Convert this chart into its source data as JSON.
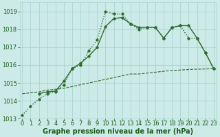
{
  "title": "Graphe pression niveau de la mer (hPa)",
  "x_labels": [
    0,
    1,
    2,
    3,
    4,
    5,
    6,
    7,
    8,
    9,
    10,
    11,
    12,
    13,
    14,
    15,
    16,
    17,
    18,
    19,
    20,
    21,
    22,
    23
  ],
  "series1_dotted": {
    "x": [
      0,
      1,
      2,
      3,
      4,
      5,
      6,
      7,
      8,
      9,
      10,
      11,
      12,
      13,
      14,
      15,
      16,
      17,
      18,
      19,
      20,
      21,
      22,
      23
    ],
    "y": [
      1013.2,
      1013.7,
      1014.1,
      1014.4,
      1014.5,
      1014.9,
      1015.8,
      1016.0,
      1016.8,
      1017.4,
      1019.0,
      1018.85,
      1018.85,
      1018.3,
      1018.0,
      1018.1,
      1018.1,
      1017.5,
      1018.1,
      1018.2,
      1017.5,
      1017.5,
      1016.7,
      1015.8
    ],
    "color": "#2d6a2d",
    "linestyle": "dotted",
    "linewidth": 1.0,
    "marker": "o",
    "markersize": 2.5
  },
  "series2_solid": {
    "x": [
      2,
      3,
      4,
      5,
      6,
      7,
      8,
      9,
      10,
      11,
      12,
      13,
      14,
      15,
      16,
      17,
      18,
      19,
      20,
      21,
      22,
      23
    ],
    "y": [
      1014.4,
      1014.5,
      1014.55,
      1015.1,
      1015.8,
      1016.1,
      1016.5,
      1017.0,
      1018.15,
      1018.6,
      1018.65,
      1018.3,
      1018.1,
      1018.1,
      1018.1,
      1017.5,
      1018.1,
      1018.2,
      1018.2,
      1017.5,
      1016.7,
      1015.8
    ],
    "color": "#2d6a2d",
    "linestyle": "solid",
    "linewidth": 1.0,
    "marker": "o",
    "markersize": 2.5
  },
  "series3_dashed": {
    "x": [
      0,
      1,
      2,
      3,
      4,
      5,
      6,
      7,
      8,
      9,
      10,
      11,
      12,
      13,
      14,
      15,
      16,
      17,
      18,
      19,
      20,
      21,
      22,
      23
    ],
    "y": [
      1014.4,
      1014.45,
      1014.5,
      1014.6,
      1014.65,
      1014.7,
      1014.8,
      1014.9,
      1015.0,
      1015.1,
      1015.2,
      1015.3,
      1015.4,
      1015.5,
      1015.5,
      1015.55,
      1015.6,
      1015.65,
      1015.7,
      1015.72,
      1015.75,
      1015.77,
      1015.78,
      1015.8
    ],
    "color": "#2d6a2d",
    "linestyle": "dashed",
    "linewidth": 0.8,
    "marker": null,
    "markersize": 0
  },
  "ylim": [
    1013.0,
    1019.5
  ],
  "yticks": [
    1013,
    1014,
    1015,
    1016,
    1017,
    1018,
    1019
  ],
  "xlim": [
    -0.3,
    23.3
  ],
  "bg_color": "#cceae7",
  "grid_color": "#aad4d0",
  "line_color": "#2d6a2d",
  "label_color": "#1a5c1a",
  "title_color": "#1a5c1a",
  "title_fontsize": 7.0,
  "tick_fontsize": 6.0
}
